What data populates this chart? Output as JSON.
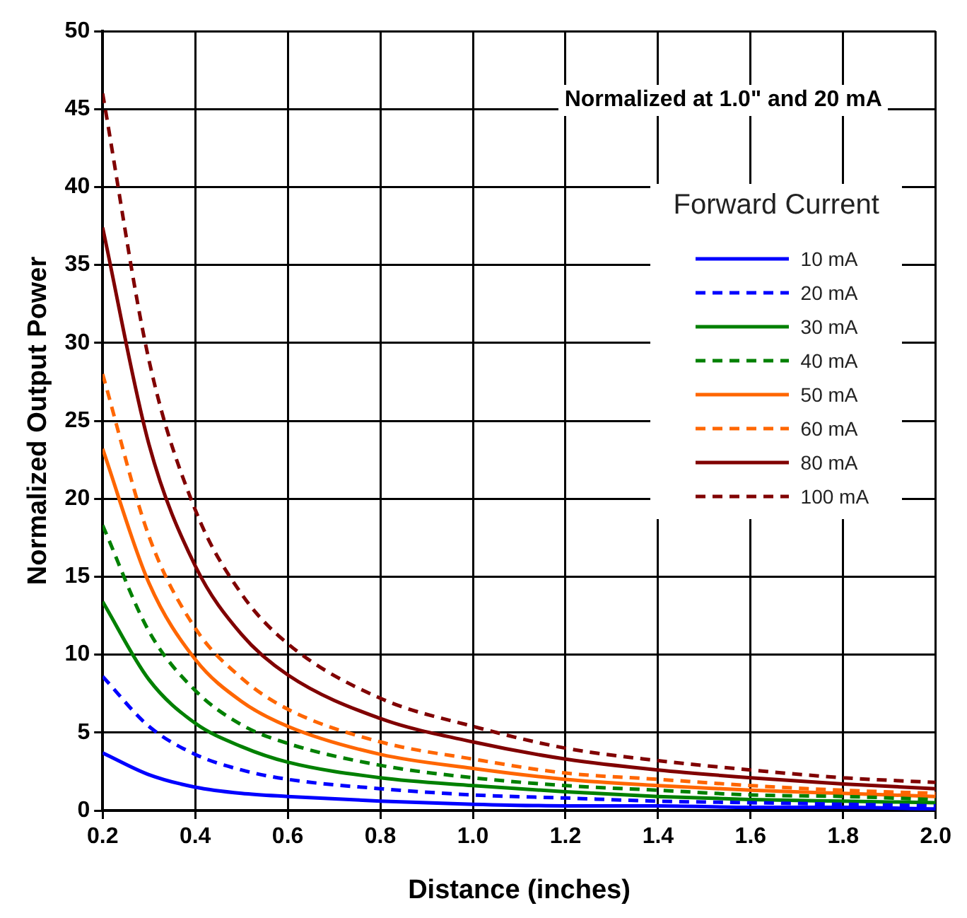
{
  "chart_data": {
    "type": "line",
    "xlabel": "Distance (inches)",
    "ylabel": "Normalized Output Power",
    "legend_title": "Forward Current",
    "annotations": [
      "Normalized at 1.0\" and 20 mA"
    ],
    "x": [
      0.2,
      0.3,
      0.4,
      0.5,
      0.6,
      0.8,
      1.0,
      1.2,
      1.4,
      1.6,
      1.8,
      2.0
    ],
    "series": [
      {
        "name": "10 mA",
        "color": "#0000ff",
        "line_style": "solid",
        "values": [
          3.7,
          2.3,
          1.5,
          1.1,
          0.9,
          0.6,
          0.4,
          0.3,
          0.3,
          0.2,
          0.2,
          0.1
        ]
      },
      {
        "name": "20 mA",
        "color": "#0000ff",
        "line_style": "dashed",
        "values": [
          8.6,
          5.4,
          3.6,
          2.6,
          2.0,
          1.4,
          1.0,
          0.8,
          0.6,
          0.5,
          0.4,
          0.3
        ]
      },
      {
        "name": "30 mA",
        "color": "#008000",
        "line_style": "solid",
        "values": [
          13.4,
          8.4,
          5.6,
          4.1,
          3.1,
          2.1,
          1.6,
          1.2,
          0.9,
          0.7,
          0.6,
          0.5
        ]
      },
      {
        "name": "40 mA",
        "color": "#008000",
        "line_style": "dashed",
        "values": [
          18.3,
          11.5,
          7.7,
          5.5,
          4.3,
          2.9,
          2.1,
          1.6,
          1.3,
          1.0,
          0.9,
          0.7
        ]
      },
      {
        "name": "50 mA",
        "color": "#ff6600",
        "line_style": "solid",
        "values": [
          23.2,
          14.6,
          9.7,
          7.0,
          5.4,
          3.6,
          2.7,
          2.0,
          1.6,
          1.3,
          1.1,
          0.9
        ]
      },
      {
        "name": "60 mA",
        "color": "#ff6600",
        "line_style": "dashed",
        "values": [
          28.0,
          17.6,
          11.7,
          8.5,
          6.5,
          4.4,
          3.3,
          2.4,
          2.0,
          1.6,
          1.3,
          1.1
        ]
      },
      {
        "name": "80 mA",
        "color": "#800000",
        "line_style": "solid",
        "values": [
          37.4,
          23.5,
          15.7,
          11.3,
          8.7,
          5.9,
          4.4,
          3.3,
          2.6,
          2.1,
          1.7,
          1.4
        ]
      },
      {
        "name": "100 mA",
        "color": "#800000",
        "line_style": "dashed",
        "values": [
          46.0,
          28.9,
          19.3,
          13.9,
          10.7,
          7.2,
          5.4,
          4.0,
          3.2,
          2.6,
          2.1,
          1.8
        ]
      }
    ],
    "xlim": [
      0.2,
      2.0
    ],
    "xticks": [
      0.2,
      0.4,
      0.6,
      0.8,
      {
        "value": 1,
        "label": "1.0"
      },
      1.2,
      1.4,
      1.6,
      1.8,
      {
        "value": 2,
        "label": "2.0"
      }
    ],
    "ylim": [
      0,
      50
    ],
    "yticks": [
      0,
      5,
      10,
      15,
      20,
      25,
      30,
      35,
      40,
      45,
      50
    ],
    "grid": true,
    "legend": "top right",
    "marker": "none"
  }
}
